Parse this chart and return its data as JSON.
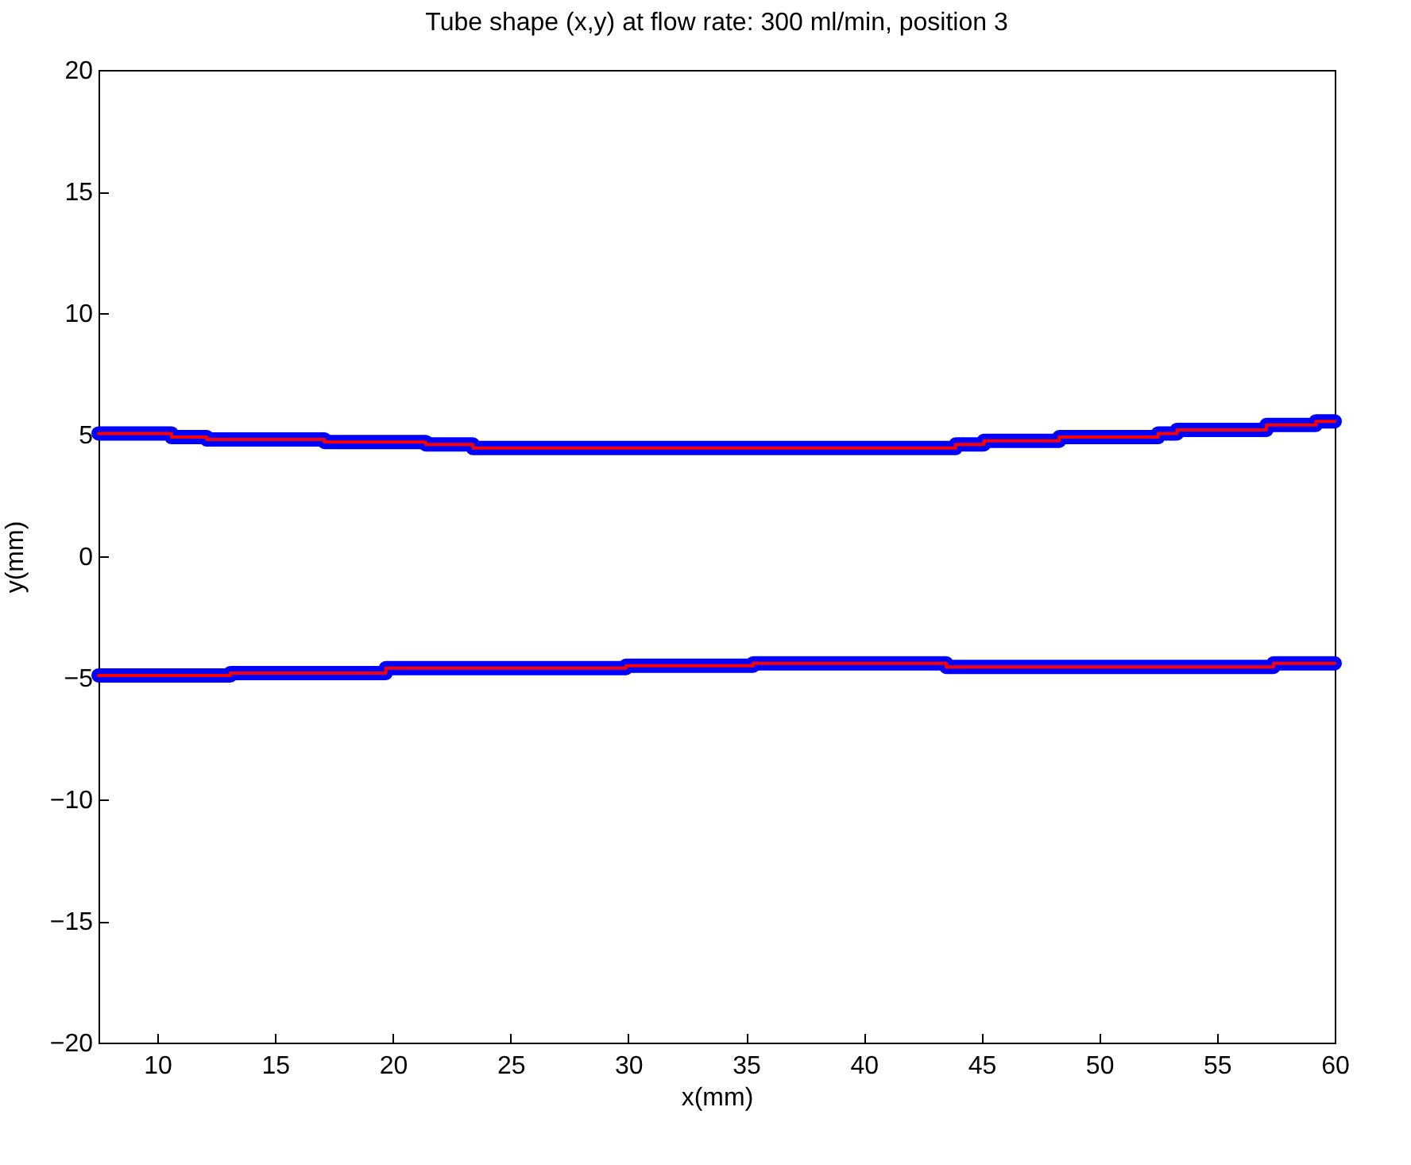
{
  "chart_data": {
    "type": "line",
    "title": "Tube shape (x,y) at flow rate: 300 ml/min, position 3",
    "xlabel": "x(mm)",
    "ylabel": "y(mm)",
    "xlim": [
      7.5,
      60
    ],
    "xticks": [
      10,
      15,
      20,
      25,
      30,
      35,
      40,
      45,
      50,
      55,
      60
    ],
    "ylim": [
      -20,
      20
    ],
    "yticks": [
      -20,
      -15,
      -10,
      -5,
      0,
      5,
      10,
      15,
      20
    ],
    "grid": false,
    "series": [
      {
        "color": "#0000ff",
        "x": [
          7.5,
          10.6,
          10.6,
          12.1,
          12.1,
          17.1,
          17.1,
          21.4,
          21.4,
          23.4,
          23.4,
          43.9,
          43.9,
          45.1,
          45.1,
          48.3,
          48.3,
          52.5,
          52.5,
          53.3,
          53.3,
          57.1,
          57.1,
          59.2,
          59.2,
          60
        ],
        "values": [
          5.05,
          5.05,
          4.9,
          4.9,
          4.8,
          4.8,
          4.7,
          4.7,
          4.6,
          4.6,
          4.45,
          4.45,
          4.6,
          4.6,
          4.75,
          4.75,
          4.9,
          4.9,
          5.05,
          5.05,
          5.2,
          5.2,
          5.4,
          5.4,
          5.55,
          5.55
        ]
      },
      {
        "color": "#0000ff",
        "x": [
          7.5,
          13.1,
          13.1,
          19.7,
          19.7,
          29.9,
          29.9,
          35.3,
          35.3,
          43.5,
          43.5,
          57.4,
          57.4,
          60
        ],
        "values": [
          -4.9,
          -4.9,
          -4.8,
          -4.8,
          -4.6,
          -4.6,
          -4.5,
          -4.5,
          -4.4,
          -4.4,
          -4.55,
          -4.55,
          -4.4,
          -4.4
        ]
      },
      {
        "color": "#ff0000",
        "x": [
          7.5,
          10.6,
          10.6,
          12.1,
          12.1,
          17.1,
          17.1,
          21.4,
          21.4,
          23.4,
          23.4,
          43.9,
          43.9,
          45.1,
          45.1,
          48.3,
          48.3,
          52.5,
          52.5,
          53.3,
          53.3,
          57.1,
          57.1,
          59.2,
          59.2,
          60
        ],
        "values": [
          5.05,
          5.05,
          4.9,
          4.9,
          4.8,
          4.8,
          4.7,
          4.7,
          4.6,
          4.6,
          4.45,
          4.45,
          4.6,
          4.6,
          4.75,
          4.75,
          4.9,
          4.9,
          5.05,
          5.05,
          5.2,
          5.2,
          5.4,
          5.4,
          5.55,
          5.55
        ]
      },
      {
        "color": "#ff0000",
        "x": [
          7.5,
          13.1,
          13.1,
          19.7,
          19.7,
          29.9,
          29.9,
          35.3,
          35.3,
          43.5,
          43.5,
          57.4,
          57.4,
          60
        ],
        "values": [
          -4.9,
          -4.9,
          -4.8,
          -4.8,
          -4.6,
          -4.6,
          -4.5,
          -4.5,
          -4.4,
          -4.4,
          -4.55,
          -4.55,
          -4.4,
          -4.4
        ]
      }
    ]
  }
}
